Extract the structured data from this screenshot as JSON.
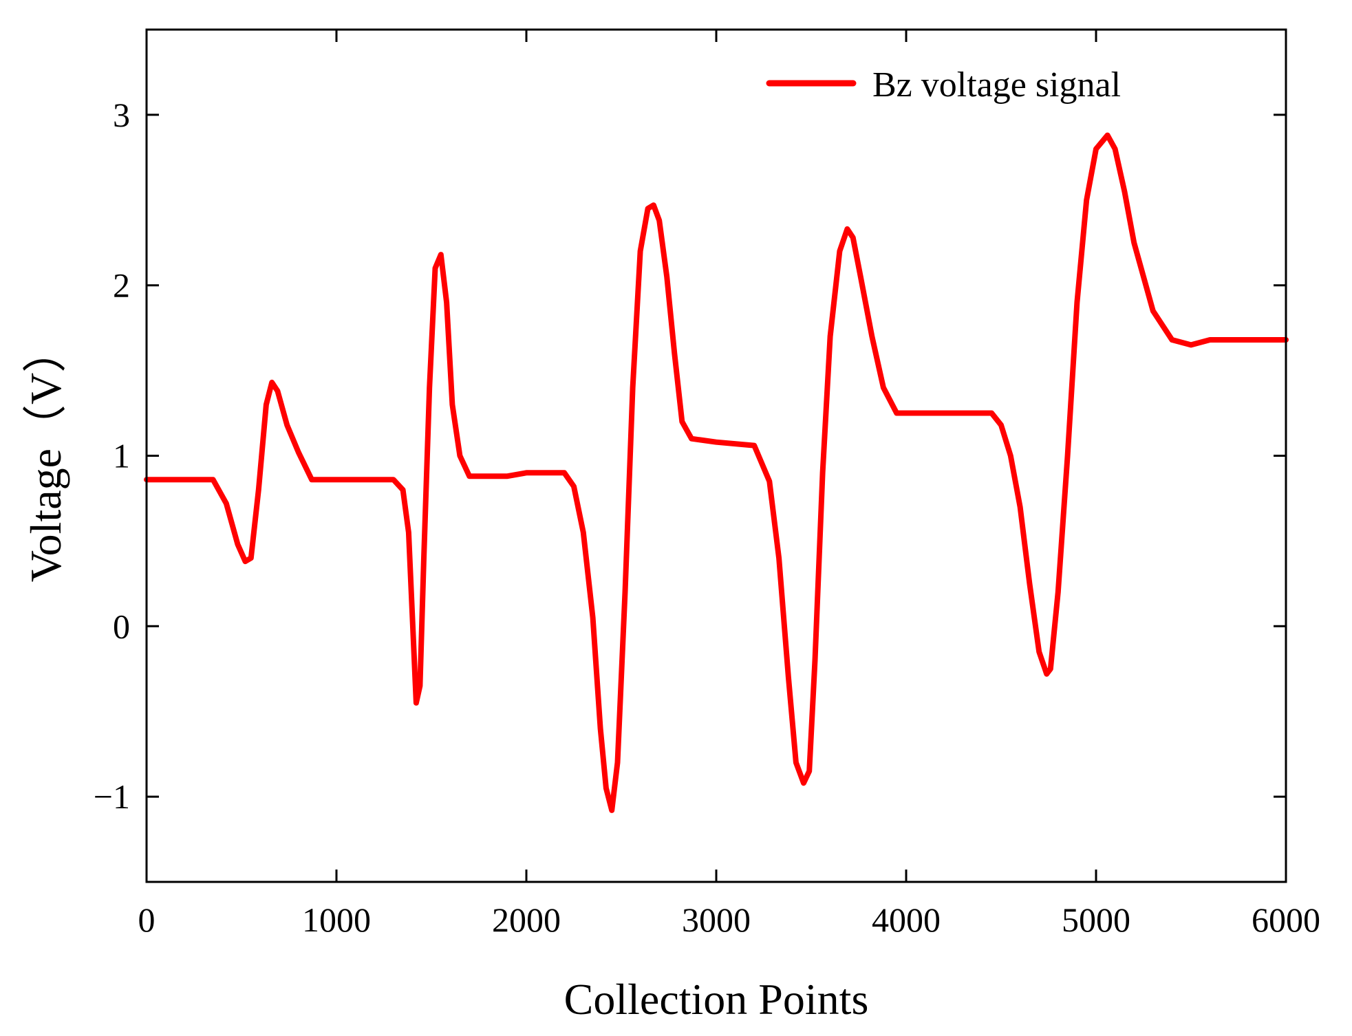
{
  "chart_data": {
    "type": "line",
    "title": "",
    "xlabel": "Collection Points",
    "ylabel": "Voltage（V）",
    "xlim": [
      0,
      6000
    ],
    "ylim": [
      -1.5,
      3.5
    ],
    "xticks": [
      0,
      1000,
      2000,
      3000,
      4000,
      5000,
      6000
    ],
    "yticks": [
      -1,
      0,
      1,
      2,
      3
    ],
    "xtick_labels": [
      "0",
      "1000",
      "2000",
      "3000",
      "4000",
      "5000",
      "6000"
    ],
    "ytick_labels": [
      "−1",
      "0",
      "1",
      "2",
      "3"
    ],
    "grid": false,
    "legend_position": "top-right",
    "series": [
      {
        "name": "Bz voltage signal",
        "color": "#ff0000",
        "x": [
          0,
          350,
          420,
          480,
          520,
          550,
          590,
          630,
          660,
          690,
          740,
          800,
          870,
          1000,
          1100,
          1300,
          1350,
          1380,
          1400,
          1420,
          1440,
          1460,
          1490,
          1520,
          1550,
          1580,
          1610,
          1650,
          1700,
          1800,
          1900,
          2000,
          2200,
          2250,
          2300,
          2350,
          2390,
          2420,
          2450,
          2480,
          2520,
          2560,
          2600,
          2640,
          2670,
          2700,
          2740,
          2780,
          2820,
          2870,
          3000,
          3200,
          3280,
          3330,
          3380,
          3420,
          3460,
          3490,
          3520,
          3560,
          3600,
          3650,
          3690,
          3720,
          3760,
          3820,
          3880,
          3950,
          4000,
          4200,
          4450,
          4500,
          4550,
          4600,
          4650,
          4700,
          4740,
          4760,
          4800,
          4850,
          4900,
          4950,
          5000,
          5060,
          5100,
          5150,
          5200,
          5300,
          5400,
          5500,
          5600,
          6000
        ],
        "y": [
          0.86,
          0.86,
          0.72,
          0.48,
          0.38,
          0.4,
          0.8,
          1.3,
          1.43,
          1.38,
          1.18,
          1.02,
          0.86,
          0.86,
          0.86,
          0.86,
          0.8,
          0.55,
          0.05,
          -0.45,
          -0.35,
          0.4,
          1.4,
          2.1,
          2.18,
          1.9,
          1.3,
          1.0,
          0.88,
          0.88,
          0.88,
          0.9,
          0.9,
          0.82,
          0.55,
          0.05,
          -0.6,
          -0.95,
          -1.08,
          -0.8,
          0.2,
          1.4,
          2.2,
          2.45,
          2.47,
          2.38,
          2.05,
          1.6,
          1.2,
          1.1,
          1.08,
          1.06,
          0.85,
          0.4,
          -0.3,
          -0.8,
          -0.92,
          -0.85,
          -0.2,
          0.9,
          1.7,
          2.2,
          2.33,
          2.28,
          2.05,
          1.7,
          1.4,
          1.25,
          1.25,
          1.25,
          1.25,
          1.18,
          1.0,
          0.7,
          0.25,
          -0.15,
          -0.28,
          -0.25,
          0.2,
          1.0,
          1.9,
          2.5,
          2.8,
          2.88,
          2.8,
          2.55,
          2.25,
          1.85,
          1.68,
          1.65,
          1.68,
          1.68
        ]
      }
    ]
  }
}
